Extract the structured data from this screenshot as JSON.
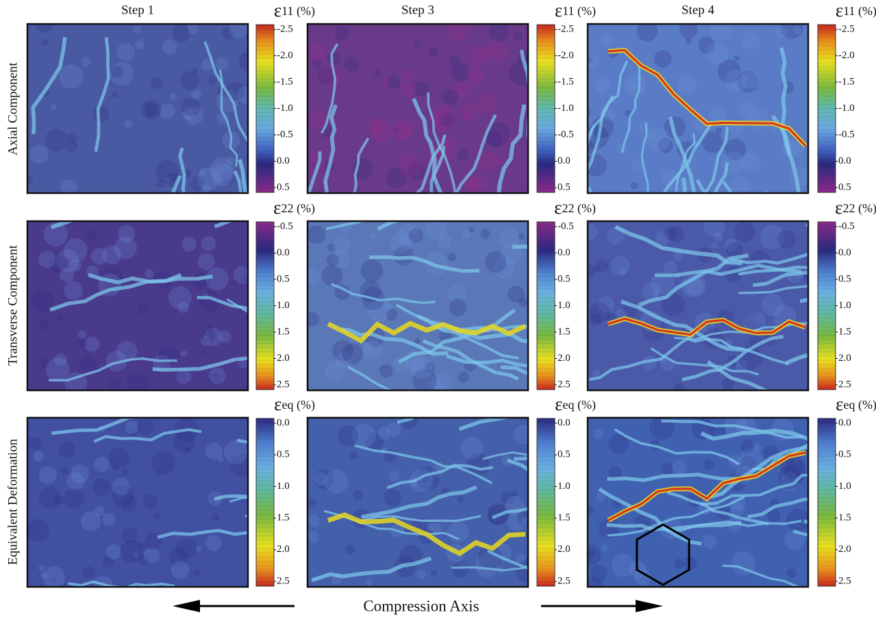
{
  "columns": [
    "Step 1",
    "Step 3",
    "Step 4"
  ],
  "rows": [
    {
      "label": "Axial Component",
      "symbol": "ε",
      "index": "11",
      "unit": "(%)",
      "ticks": [
        "-2.5",
        "-2.0",
        "-1.5",
        "-1.0",
        "-0.5",
        "0.0",
        "0.5"
      ]
    },
    {
      "label": "Transverse  Component",
      "symbol": "ε",
      "index": "22",
      "unit": "(%)",
      "ticks": [
        "-0.5",
        "0.0",
        "0.5",
        "1.0",
        "1.5",
        "2.0",
        "2.5"
      ]
    },
    {
      "label": "Equivalent Deformation",
      "symbol": "ε",
      "index": "eq",
      "unit": "(%)",
      "ticks": [
        "0.0",
        "0.5",
        "1.0",
        "1.5",
        "2.0",
        "2.5"
      ]
    }
  ],
  "axis_caption": "Compression Axis"
}
